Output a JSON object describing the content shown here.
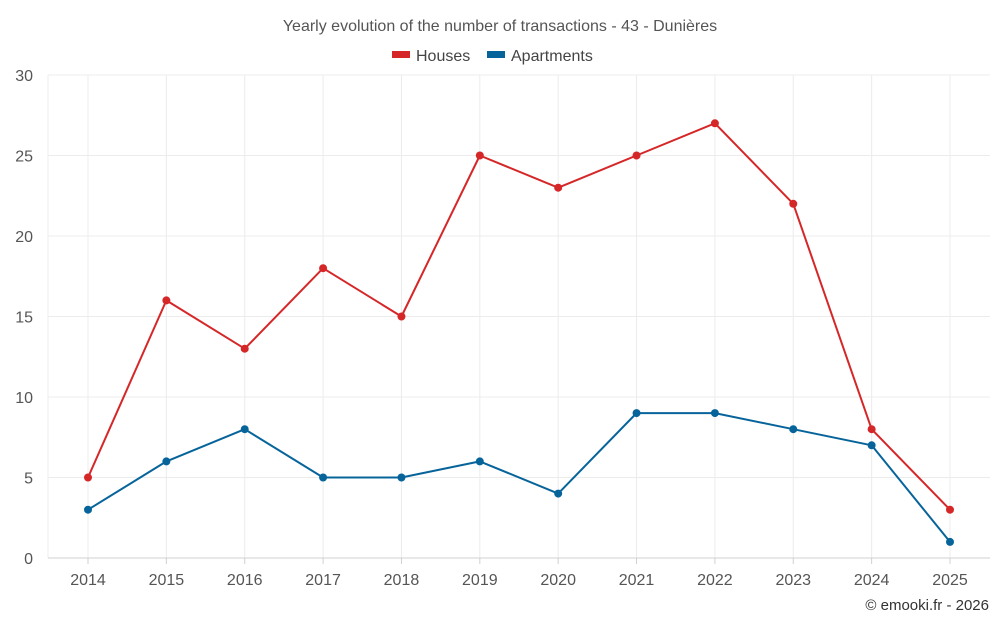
{
  "chart_data": {
    "type": "line",
    "title": "Yearly evolution of the number of transactions - 43 - Dunières",
    "categories": [
      "2014",
      "2015",
      "2016",
      "2017",
      "2018",
      "2019",
      "2020",
      "2021",
      "2022",
      "2023",
      "2024",
      "2025"
    ],
    "series": [
      {
        "name": "Houses",
        "color": "#d62728",
        "values": [
          5,
          16,
          13,
          18,
          15,
          25,
          23,
          25,
          27,
          22,
          8,
          3
        ]
      },
      {
        "name": "Apartments",
        "color": "#07649b",
        "values": [
          3,
          6,
          8,
          5,
          5,
          6,
          4,
          9,
          9,
          8,
          7,
          1
        ]
      }
    ],
    "ylim": [
      0,
      30
    ],
    "yticks": [
      0,
      5,
      10,
      15,
      20,
      25,
      30
    ],
    "xlabel": "",
    "ylabel": "",
    "grid": true,
    "legend_position": "top-center"
  },
  "credit": "© emooki.fr - 2026"
}
